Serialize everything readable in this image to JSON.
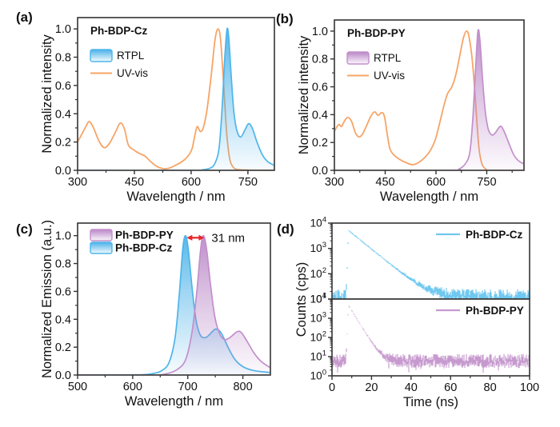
{
  "figure": {
    "panels": [
      {
        "letter": "(a)"
      },
      {
        "letter": "(b)"
      },
      {
        "letter": "(c)"
      },
      {
        "letter": "(d)"
      }
    ]
  },
  "colors": {
    "uv_vis": "#F7A466",
    "cz_line": "#4DB5EA",
    "cz_fill": "#3FADE7",
    "py_line": "#C38FCB",
    "py_fill": "#B57FC4",
    "cz_noise": "#6FC8F0",
    "py_noise": "#C79ACF",
    "arrow_red": "#E8262A",
    "axis": "#333333",
    "text": "#111111"
  },
  "chart_data": [
    {
      "id": "a",
      "type": "area+line",
      "title": "Ph-BDP-Cz",
      "xlabel": "Wavelength / nm",
      "ylabel": "Normalized intensity",
      "xlim": [
        300,
        820
      ],
      "ylim": [
        0,
        1.08
      ],
      "xticks": [
        300,
        450,
        600,
        750
      ],
      "xminor": [
        375,
        525,
        675
      ],
      "yticks": [
        0.0,
        0.2,
        0.4,
        0.6,
        0.8,
        1.0
      ],
      "legend": {
        "title": "Ph-BDP-Cz",
        "items": [
          {
            "label": "RTPL",
            "swatch": "gradient",
            "line": "#4DB5EA",
            "fill": "#3FADE7"
          },
          {
            "label": "UV-vis",
            "swatch": "line",
            "line": "#F7A466"
          }
        ]
      },
      "series": [
        {
          "name": "UV-vis",
          "style": "line",
          "line": "#F7A466",
          "x": [
            300,
            312,
            322,
            331,
            342,
            356,
            370,
            384,
            400,
            413,
            424,
            434,
            448,
            463,
            478,
            492,
            508,
            525,
            542,
            558,
            575,
            590,
            602,
            610,
            616,
            624,
            632,
            642,
            653,
            663,
            671,
            678,
            686,
            694,
            702,
            712,
            724,
            745,
            820
          ],
          "y": [
            0.2,
            0.26,
            0.31,
            0.345,
            0.3,
            0.21,
            0.16,
            0.19,
            0.27,
            0.335,
            0.29,
            0.18,
            0.145,
            0.12,
            0.1,
            0.065,
            0.03,
            0.012,
            0.015,
            0.035,
            0.06,
            0.095,
            0.15,
            0.25,
            0.31,
            0.275,
            0.3,
            0.43,
            0.67,
            0.92,
            1.0,
            0.92,
            0.6,
            0.26,
            0.08,
            0.02,
            0.005,
            0.002,
            0.0
          ]
        },
        {
          "name": "RTPL",
          "style": "area",
          "line": "#4DB5EA",
          "fill": "#3FADE7",
          "x": [
            300,
            600,
            630,
            650,
            663,
            674,
            682,
            689,
            695,
            700,
            706,
            713,
            721,
            731,
            742,
            752,
            762,
            774,
            788,
            803,
            820
          ],
          "y": [
            0,
            0,
            0.004,
            0.015,
            0.05,
            0.16,
            0.45,
            0.8,
            1.0,
            0.92,
            0.66,
            0.41,
            0.28,
            0.235,
            0.285,
            0.33,
            0.295,
            0.2,
            0.11,
            0.06,
            0.035
          ]
        }
      ]
    },
    {
      "id": "b",
      "type": "area+line",
      "title": "Ph-BDP-PY",
      "xlabel": "Wavelength / nm",
      "ylabel": "Normalized intensity",
      "xlim": [
        300,
        860
      ],
      "ylim": [
        0,
        1.08
      ],
      "xticks": [
        300,
        450,
        600,
        750
      ],
      "xminor": [
        375,
        525,
        675,
        825
      ],
      "yticks": [
        0.0,
        0.2,
        0.4,
        0.6,
        0.8,
        1.0
      ],
      "legend": {
        "title": "Ph-BDP-PY",
        "items": [
          {
            "label": "RTPL",
            "swatch": "gradient",
            "line": "#C38FCB",
            "fill": "#B57FC4"
          },
          {
            "label": "UV-vis",
            "swatch": "line",
            "line": "#F7A466"
          }
        ]
      },
      "series": [
        {
          "name": "UV-vis",
          "style": "line",
          "line": "#F7A466",
          "x": [
            300,
            308,
            314,
            321,
            330,
            339,
            350,
            362,
            372,
            383,
            395,
            408,
            419,
            429,
            440,
            448,
            456,
            464,
            476,
            492,
            512,
            532,
            550,
            568,
            584,
            598,
            612,
            624,
            635,
            646,
            658,
            670,
            681,
            690,
            698,
            708,
            718,
            727,
            736,
            748,
            762,
            860
          ],
          "y": [
            0.28,
            0.315,
            0.33,
            0.315,
            0.355,
            0.38,
            0.355,
            0.27,
            0.24,
            0.26,
            0.32,
            0.39,
            0.42,
            0.395,
            0.415,
            0.385,
            0.26,
            0.155,
            0.11,
            0.08,
            0.055,
            0.04,
            0.058,
            0.095,
            0.145,
            0.22,
            0.35,
            0.47,
            0.555,
            0.595,
            0.68,
            0.82,
            0.95,
            1.0,
            0.955,
            0.77,
            0.45,
            0.16,
            0.045,
            0.008,
            0.0,
            0.0
          ]
        },
        {
          "name": "RTPL",
          "style": "area",
          "line": "#C38FCB",
          "fill": "#B57FC4",
          "x": [
            300,
            640,
            668,
            686,
            700,
            709,
            717,
            724,
            730,
            737,
            745,
            754,
            764,
            774,
            785,
            793,
            803,
            816,
            829,
            843,
            860
          ],
          "y": [
            0,
            0,
            0.01,
            0.045,
            0.13,
            0.38,
            0.73,
            1.0,
            0.93,
            0.68,
            0.44,
            0.3,
            0.255,
            0.265,
            0.305,
            0.315,
            0.27,
            0.19,
            0.115,
            0.07,
            0.045
          ]
        }
      ]
    },
    {
      "id": "c",
      "type": "area",
      "xlabel": "Wavelength / nm",
      "ylabel": "Normalized Emission (a.u.)",
      "xlim": [
        500,
        850
      ],
      "ylim": [
        0,
        1.09
      ],
      "xticks": [
        500,
        600,
        700,
        800
      ],
      "xminor": [
        550,
        650,
        750
      ],
      "yticks": [
        0.0,
        0.2,
        0.4,
        0.6,
        0.8,
        1.0
      ],
      "legend": {
        "items": [
          {
            "label": "Ph-BDP-PY",
            "swatch": "gradient",
            "line": "#C38FCB",
            "fill": "#B57FC4"
          },
          {
            "label": "Ph-BDP-Cz",
            "swatch": "gradient",
            "line": "#4DB5EA",
            "fill": "#3FADE7"
          }
        ]
      },
      "annotation": {
        "text": "31 nm",
        "x1": 698,
        "x2": 730,
        "y": 0.985,
        "color": "#E8262A"
      },
      "series": [
        {
          "name": "Ph-BDP-Cz",
          "style": "area",
          "line": "#4DB5EA",
          "fill": "#3FADE7",
          "x": [
            500,
            610,
            635,
            652,
            666,
            677,
            685,
            691,
            696,
            701,
            708,
            715,
            723,
            733,
            743,
            751,
            761,
            773,
            786,
            801,
            820,
            850
          ],
          "y": [
            0,
            0.002,
            0.01,
            0.03,
            0.09,
            0.27,
            0.6,
            0.91,
            1.0,
            0.9,
            0.62,
            0.395,
            0.285,
            0.27,
            0.305,
            0.33,
            0.3,
            0.2,
            0.11,
            0.058,
            0.032,
            0.018
          ]
        },
        {
          "name": "Ph-BDP-PY",
          "style": "area",
          "line": "#C38FCB",
          "fill": "#B57FC4",
          "x": [
            500,
            630,
            660,
            681,
            696,
            707,
            716,
            723,
            728,
            734,
            741,
            749,
            758,
            767,
            777,
            789,
            797,
            808,
            820,
            833,
            850
          ],
          "y": [
            0,
            0,
            0.008,
            0.04,
            0.11,
            0.29,
            0.58,
            0.89,
            1.0,
            0.91,
            0.66,
            0.42,
            0.295,
            0.255,
            0.27,
            0.31,
            0.305,
            0.24,
            0.16,
            0.098,
            0.052
          ]
        }
      ]
    },
    {
      "id": "d",
      "type": "decay",
      "xlabel": "Time (ns)",
      "ylabel": "Counts (cps)",
      "xlim": [
        0,
        100
      ],
      "xticks": [
        0,
        20,
        40,
        60,
        80,
        100
      ],
      "xminor": [
        10,
        30,
        50,
        70,
        90
      ],
      "panels": [
        {
          "name": "Ph-BDP-Cz",
          "color": "#6FC8F0",
          "ylim_exp": [
            1,
            4
          ],
          "ytick_exps": [
            4,
            3,
            2,
            1
          ],
          "peak": 5200,
          "t0": 8.3,
          "tau": 6.8,
          "floor": 14,
          "seed": 7,
          "dropout": 0
        },
        {
          "name": "Ph-BDP-PY",
          "color": "#C79ACF",
          "ylim_exp": [
            0,
            4
          ],
          "ytick_exps": [
            4,
            3,
            2,
            1,
            0
          ],
          "peak": 4800,
          "t0": 8.3,
          "tau": 2.6,
          "floor": 8,
          "seed": 13,
          "dropout": 0.1
        }
      ]
    }
  ]
}
